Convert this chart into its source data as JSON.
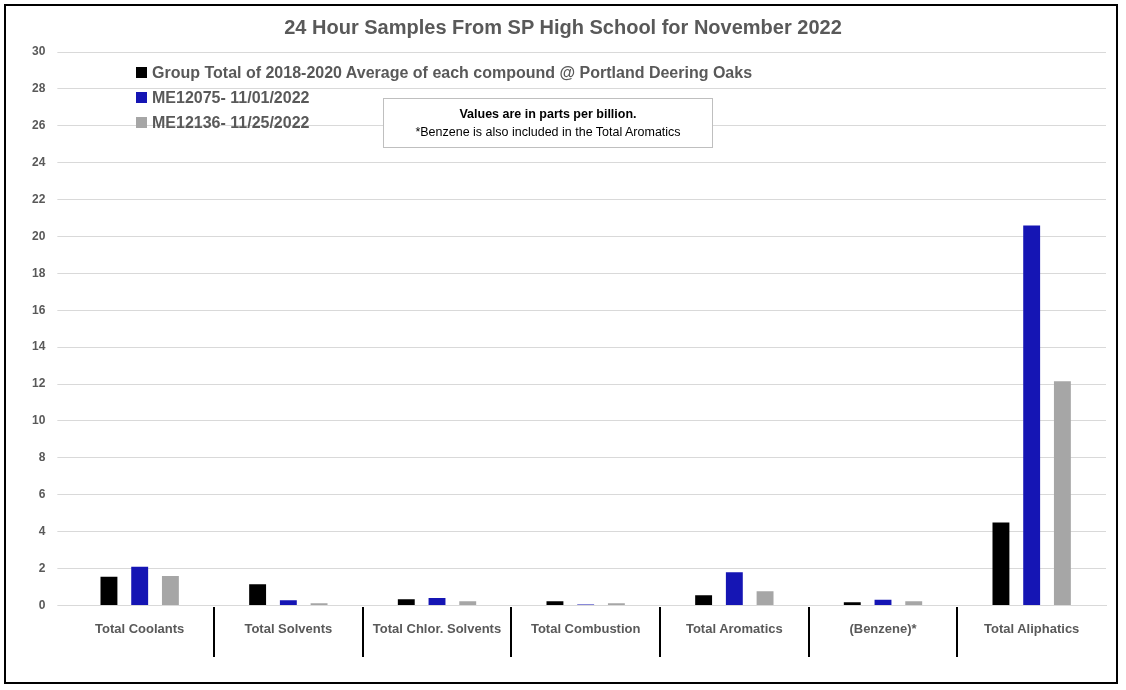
{
  "chart_data": {
    "type": "bar",
    "title": "24 Hour Samples From SP High School for November 2022",
    "categories": [
      "Total Coolants",
      "Total Solvents",
      "Total Chlor. Solvents",
      "Total Combustion",
      "Total Aromatics",
      "(Benzene)*",
      "Total Aliphatics"
    ],
    "series": [
      {
        "name": "Group Total of 2018-2020 Average of each compound @ Portland Deering Oaks",
        "color": "#000000",
        "values": [
          1.55,
          1.15,
          0.33,
          0.22,
          0.55,
          0.17,
          4.5
        ]
      },
      {
        "name": "ME12075- 11/01/2022",
        "color": "#1515b4",
        "values": [
          2.1,
          0.28,
          0.4,
          0.05,
          1.8,
          0.3,
          20.6
        ]
      },
      {
        "name": "ME12136- 11/25/2022",
        "color": "#a6a6a6",
        "values": [
          1.6,
          0.12,
          0.22,
          0.12,
          0.77,
          0.22,
          12.15
        ]
      }
    ],
    "ylim": [
      0,
      30
    ],
    "yticks": [
      0,
      2,
      4,
      6,
      8,
      10,
      12,
      14,
      16,
      18,
      20,
      22,
      24,
      26,
      28,
      30
    ],
    "grid": "y",
    "legend": "top left",
    "annotations": [
      "Values are in parts per billion.",
      "*Benzene is also included in the Total Aromatics"
    ]
  }
}
